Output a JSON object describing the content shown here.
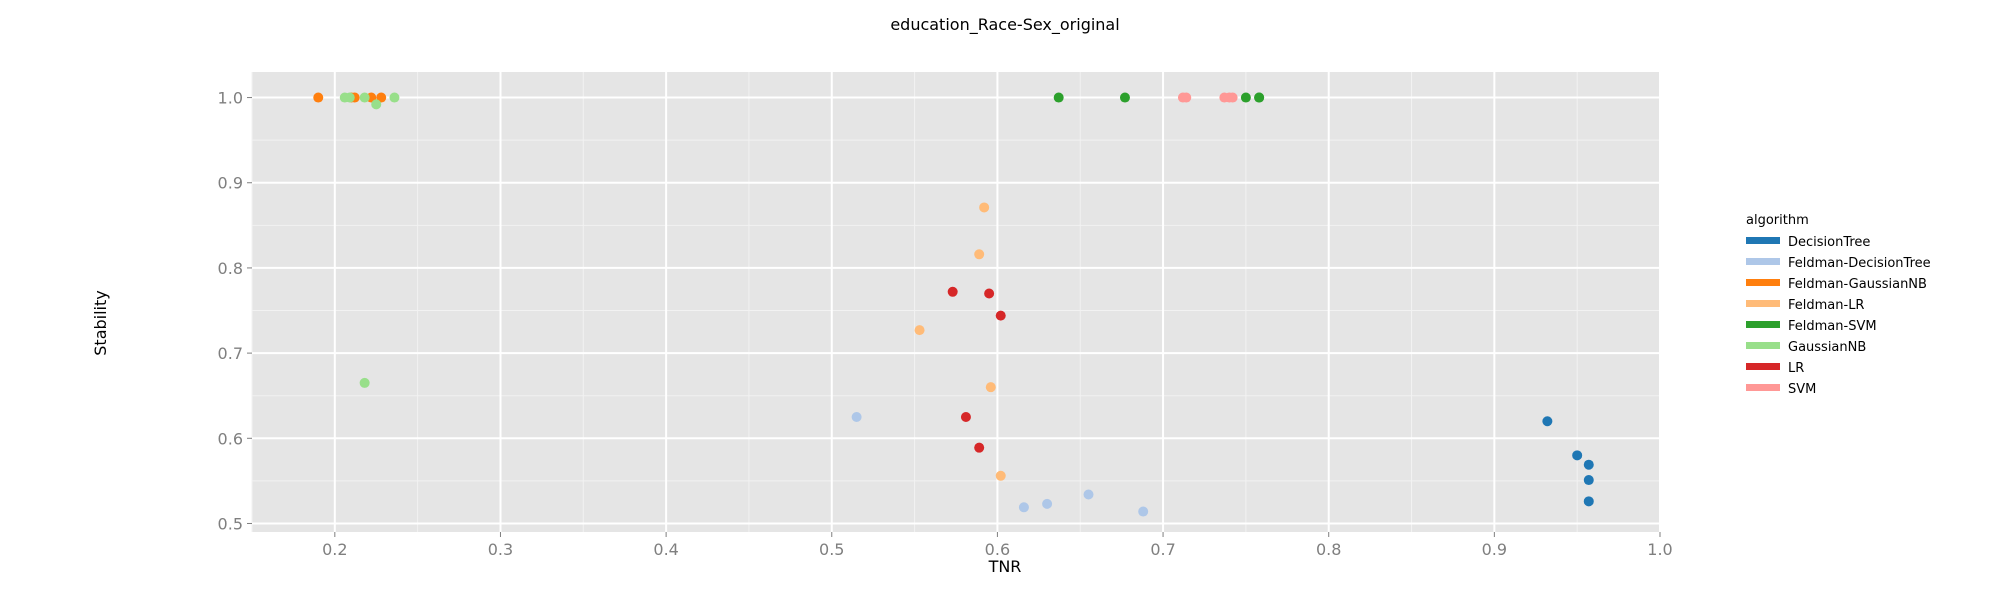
{
  "chart_data": {
    "type": "scatter",
    "title": "education_Race-Sex_original",
    "xlabel": "TNR",
    "ylabel": "Stability",
    "xlim": [
      0.15,
      1.0
    ],
    "ylim": [
      0.49,
      1.03
    ],
    "x_ticks": [
      "0.2",
      "0.3",
      "0.4",
      "0.5",
      "0.6",
      "0.7",
      "0.8",
      "0.9",
      "1.0"
    ],
    "y_ticks": [
      "0.5",
      "0.6",
      "0.7",
      "0.8",
      "0.9",
      "1.0"
    ],
    "grid": true,
    "background": "#e5e5e5",
    "legend_position": "right",
    "legend_title": "algorithm",
    "series": [
      {
        "name": "DecisionTree",
        "color": "#1f77b4",
        "points": [
          [
            0.932,
            0.62
          ],
          [
            0.95,
            0.58
          ],
          [
            0.957,
            0.569
          ],
          [
            0.957,
            0.551
          ],
          [
            0.957,
            0.526
          ]
        ]
      },
      {
        "name": "Feldman-DecisionTree",
        "color": "#aec7e8",
        "points": [
          [
            0.515,
            0.625
          ],
          [
            0.655,
            0.534
          ],
          [
            0.63,
            0.523
          ],
          [
            0.616,
            0.519
          ],
          [
            0.688,
            0.514
          ]
        ]
      },
      {
        "name": "Feldman-GaussianNB",
        "color": "#ff7f0e",
        "points": [
          [
            0.19,
            1.0
          ],
          [
            0.21,
            1.0
          ],
          [
            0.212,
            1.0
          ],
          [
            0.222,
            1.0
          ],
          [
            0.228,
            1.0
          ]
        ]
      },
      {
        "name": "Feldman-LR",
        "color": "#ffbb78",
        "points": [
          [
            0.592,
            0.871
          ],
          [
            0.589,
            0.816
          ],
          [
            0.553,
            0.727
          ],
          [
            0.596,
            0.66
          ],
          [
            0.602,
            0.556
          ]
        ]
      },
      {
        "name": "Feldman-SVM",
        "color": "#2ca02c",
        "points": [
          [
            0.637,
            1.0
          ],
          [
            0.677,
            1.0
          ],
          [
            0.75,
            1.0
          ],
          [
            0.758,
            1.0
          ],
          [
            0.758,
            1.0
          ]
        ]
      },
      {
        "name": "GaussianNB",
        "color": "#98df8a",
        "points": [
          [
            0.206,
            1.0
          ],
          [
            0.209,
            1.0
          ],
          [
            0.218,
            1.0
          ],
          [
            0.225,
            0.992
          ],
          [
            0.236,
            1.0
          ],
          [
            0.218,
            0.665
          ]
        ]
      },
      {
        "name": "LR",
        "color": "#d62728",
        "points": [
          [
            0.573,
            0.772
          ],
          [
            0.595,
            0.77
          ],
          [
            0.602,
            0.744
          ],
          [
            0.581,
            0.625
          ],
          [
            0.589,
            0.589
          ]
        ]
      },
      {
        "name": "SVM",
        "color": "#ff9896",
        "points": [
          [
            0.712,
            1.0
          ],
          [
            0.714,
            1.0
          ],
          [
            0.737,
            1.0
          ],
          [
            0.74,
            1.0
          ],
          [
            0.742,
            1.0
          ]
        ]
      }
    ]
  }
}
